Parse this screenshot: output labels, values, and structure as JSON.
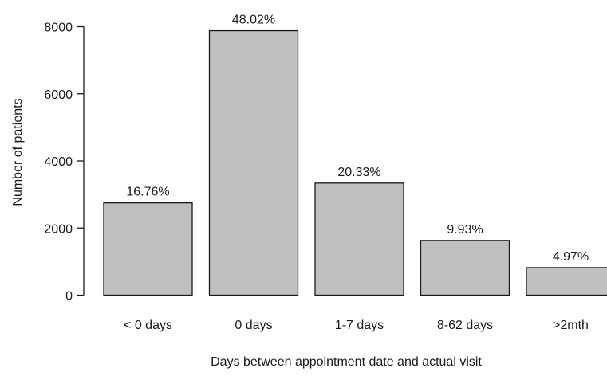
{
  "chart_data": {
    "type": "bar",
    "title": "",
    "xlabel": "Days between appointment date and actual visit",
    "ylabel": "Number of patients",
    "categories": [
      "< 0 days",
      "0 days",
      "1-7 days",
      "8-62 days",
      ">2mth"
    ],
    "values": [
      2750,
      7880,
      3340,
      1630,
      820
    ],
    "data_labels": [
      "16.76%",
      "48.02%",
      "20.33%",
      "9.93%",
      "4.97%"
    ],
    "yticks": [
      0,
      2000,
      4000,
      6000,
      8000
    ],
    "ylim": [
      0,
      8000
    ],
    "bar_color": "#c0c0c0",
    "edge_color": "#1a1a1a",
    "grid": false,
    "legend": "none"
  }
}
